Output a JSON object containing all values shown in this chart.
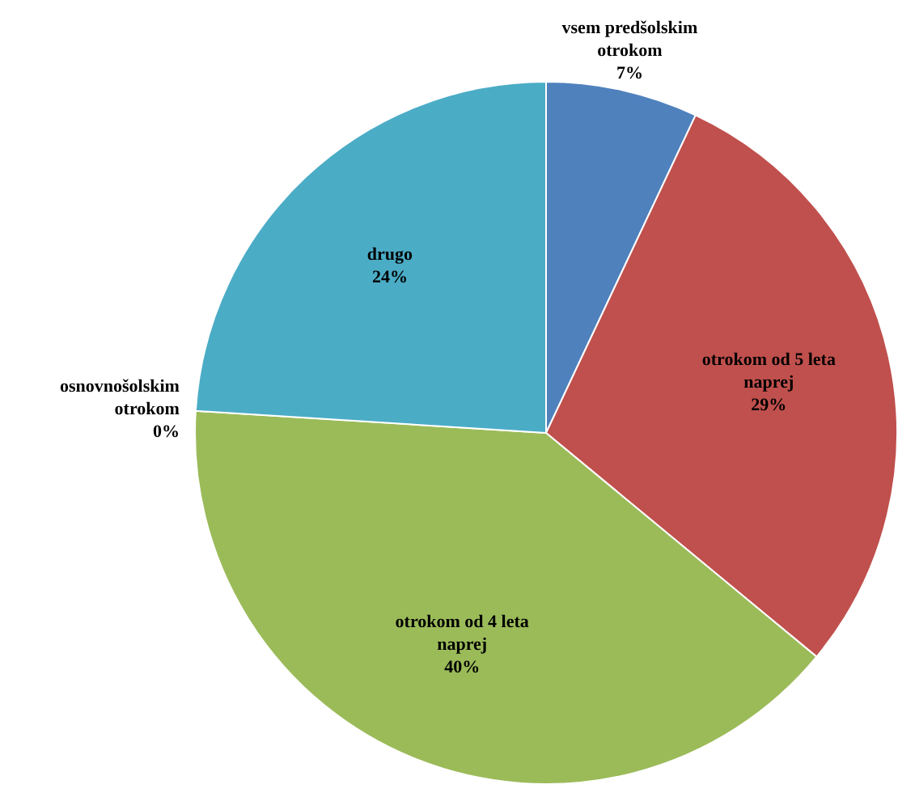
{
  "chart_data": {
    "type": "pie",
    "categories": [
      "vsem predšolskim otrokom",
      "otrokom od 5 leta naprej",
      "otrokom od 4 leta naprej",
      "osnovnošolskim otrokom",
      "drugo"
    ],
    "values": [
      7,
      29,
      40,
      0,
      24
    ],
    "colors": [
      "#4f81bd",
      "#c0504d",
      "#9bbb59",
      "#8064a2",
      "#4bacc6"
    ],
    "value_labels": [
      "7%",
      "29%",
      "40%",
      "0%",
      "24%"
    ]
  }
}
